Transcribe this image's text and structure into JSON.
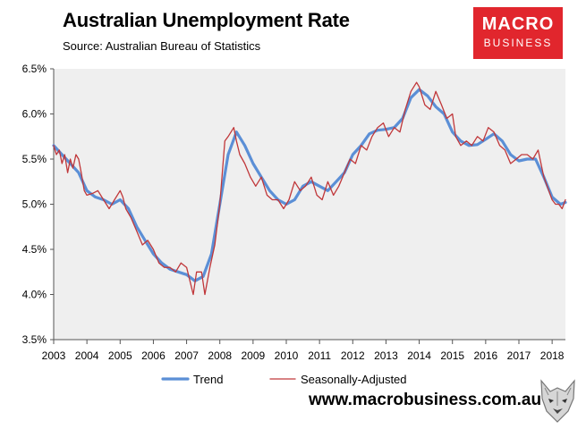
{
  "header": {
    "title": "Australian Unemployment Rate",
    "subtitle": "Source: Australian Bureau of Statistics"
  },
  "logo": {
    "line1": "MACRO",
    "line2": "BUSINESS"
  },
  "footer": {
    "url": "www.macrobusiness.com.au"
  },
  "colors": {
    "trend": "#5b8fd6",
    "seasonally_adjusted": "#c0373a",
    "plot_bg": "#efefef",
    "logo_bg": "#e1262d"
  },
  "chart_data": {
    "type": "line",
    "title": "Australian Unemployment Rate",
    "xlabel": "",
    "ylabel": "",
    "xlim": [
      2003,
      2018.4
    ],
    "ylim": [
      3.5,
      6.5
    ],
    "y_ticks": [
      "3.5%",
      "4.0%",
      "4.5%",
      "5.0%",
      "5.5%",
      "6.0%",
      "6.5%"
    ],
    "y_tick_values": [
      3.5,
      4.0,
      4.5,
      5.0,
      5.5,
      6.0,
      6.5
    ],
    "x_ticks": [
      "2003",
      "2004",
      "2005",
      "2006",
      "2007",
      "2008",
      "2009",
      "2010",
      "2011",
      "2012",
      "2013",
      "2014",
      "2015",
      "2016",
      "2017",
      "2018"
    ],
    "x_tick_values": [
      2003,
      2004,
      2005,
      2006,
      2007,
      2008,
      2009,
      2010,
      2011,
      2012,
      2013,
      2014,
      2015,
      2016,
      2017,
      2018
    ],
    "grid": false,
    "legend_position": "bottom",
    "series": [
      {
        "name": "Trend",
        "x": [
          2003.0,
          2003.25,
          2003.5,
          2003.75,
          2004.0,
          2004.25,
          2004.5,
          2004.75,
          2005.0,
          2005.25,
          2005.5,
          2005.75,
          2006.0,
          2006.25,
          2006.5,
          2006.75,
          2007.0,
          2007.25,
          2007.5,
          2007.75,
          2008.0,
          2008.25,
          2008.5,
          2008.75,
          2009.0,
          2009.25,
          2009.5,
          2009.75,
          2010.0,
          2010.25,
          2010.5,
          2010.75,
          2011.0,
          2011.25,
          2011.5,
          2011.75,
          2012.0,
          2012.25,
          2012.5,
          2012.75,
          2013.0,
          2013.25,
          2013.5,
          2013.75,
          2014.0,
          2014.25,
          2014.5,
          2014.75,
          2015.0,
          2015.25,
          2015.5,
          2015.75,
          2016.0,
          2016.25,
          2016.5,
          2016.75,
          2017.0,
          2017.25,
          2017.5,
          2017.75,
          2018.0,
          2018.25,
          2018.4
        ],
        "values": [
          5.65,
          5.55,
          5.45,
          5.35,
          5.15,
          5.08,
          5.05,
          5.0,
          5.05,
          4.95,
          4.75,
          4.6,
          4.45,
          4.35,
          4.28,
          4.25,
          4.22,
          4.15,
          4.2,
          4.45,
          5.0,
          5.55,
          5.8,
          5.65,
          5.45,
          5.3,
          5.15,
          5.05,
          5.0,
          5.05,
          5.2,
          5.25,
          5.2,
          5.15,
          5.25,
          5.35,
          5.55,
          5.65,
          5.78,
          5.82,
          5.83,
          5.85,
          5.95,
          6.18,
          6.27,
          6.2,
          6.08,
          6.0,
          5.8,
          5.7,
          5.65,
          5.66,
          5.72,
          5.78,
          5.7,
          5.55,
          5.48,
          5.5,
          5.5,
          5.3,
          5.08,
          5.0,
          5.02
        ]
      },
      {
        "name": "Seasonally-Adjusted",
        "x": [
          2003.0,
          2003.08,
          2003.17,
          2003.25,
          2003.33,
          2003.42,
          2003.5,
          2003.58,
          2003.67,
          2003.75,
          2003.83,
          2003.92,
          2004.0,
          2004.17,
          2004.33,
          2004.5,
          2004.67,
          2004.83,
          2005.0,
          2005.08,
          2005.17,
          2005.33,
          2005.5,
          2005.67,
          2005.83,
          2006.0,
          2006.17,
          2006.33,
          2006.5,
          2006.67,
          2006.83,
          2007.0,
          2007.1,
          2007.2,
          2007.3,
          2007.45,
          2007.55,
          2007.7,
          2007.85,
          2008.0,
          2008.15,
          2008.25,
          2008.42,
          2008.5,
          2008.6,
          2008.75,
          2008.92,
          2009.08,
          2009.25,
          2009.42,
          2009.58,
          2009.75,
          2009.92,
          2010.08,
          2010.25,
          2010.42,
          2010.58,
          2010.75,
          2010.92,
          2011.08,
          2011.25,
          2011.42,
          2011.58,
          2011.75,
          2011.92,
          2012.08,
          2012.25,
          2012.42,
          2012.58,
          2012.75,
          2012.92,
          2013.08,
          2013.25,
          2013.42,
          2013.58,
          2013.75,
          2013.92,
          2014.0,
          2014.17,
          2014.33,
          2014.5,
          2014.67,
          2014.83,
          2015.0,
          2015.1,
          2015.25,
          2015.42,
          2015.58,
          2015.75,
          2015.92,
          2016.08,
          2016.25,
          2016.42,
          2016.58,
          2016.75,
          2016.92,
          2017.08,
          2017.25,
          2017.42,
          2017.58,
          2017.75,
          2017.85,
          2018.0,
          2018.1,
          2018.2,
          2018.3,
          2018.4
        ],
        "values": [
          5.65,
          5.55,
          5.6,
          5.45,
          5.55,
          5.35,
          5.5,
          5.4,
          5.55,
          5.5,
          5.35,
          5.15,
          5.1,
          5.12,
          5.15,
          5.05,
          4.95,
          5.05,
          5.15,
          5.08,
          4.95,
          4.85,
          4.7,
          4.55,
          4.6,
          4.5,
          4.35,
          4.3,
          4.3,
          4.25,
          4.35,
          4.3,
          4.15,
          4.0,
          4.25,
          4.25,
          4.0,
          4.3,
          4.55,
          5.0,
          5.7,
          5.75,
          5.85,
          5.7,
          5.55,
          5.45,
          5.3,
          5.2,
          5.3,
          5.1,
          5.05,
          5.05,
          4.95,
          5.05,
          5.25,
          5.15,
          5.2,
          5.3,
          5.1,
          5.05,
          5.25,
          5.1,
          5.2,
          5.35,
          5.5,
          5.45,
          5.65,
          5.6,
          5.75,
          5.85,
          5.9,
          5.75,
          5.85,
          5.8,
          6.05,
          6.25,
          6.35,
          6.3,
          6.1,
          6.05,
          6.25,
          6.1,
          5.95,
          6.0,
          5.75,
          5.65,
          5.7,
          5.65,
          5.75,
          5.7,
          5.85,
          5.8,
          5.65,
          5.6,
          5.45,
          5.5,
          5.55,
          5.55,
          5.5,
          5.6,
          5.3,
          5.2,
          5.05,
          5.0,
          5.0,
          4.95,
          5.05
        ]
      }
    ]
  }
}
